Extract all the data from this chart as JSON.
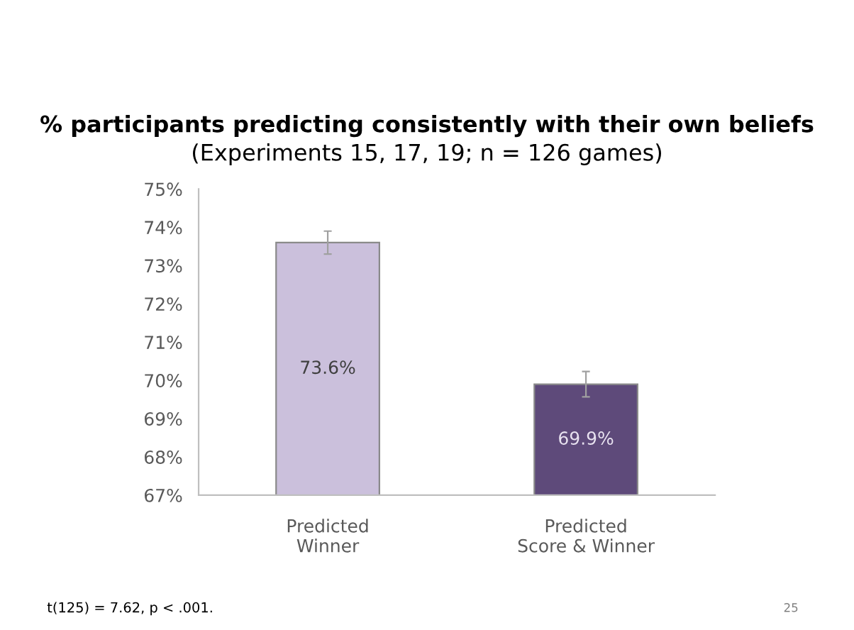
{
  "chart_data": {
    "type": "bar",
    "title": "% participants predicting consistently with their own beliefs",
    "subtitle": "(Experiments 15, 17, 19; n = 126 games)",
    "categories": [
      "Predicted\nWinner",
      "Predicted\nScore & Winner"
    ],
    "values": [
      73.6,
      69.9
    ],
    "colors": [
      "#cbc0dc",
      "#5e4a7a"
    ],
    "errors": [
      0.3,
      0.33
    ],
    "value_labels": [
      "73.6%",
      "69.9%"
    ],
    "ylim": [
      67,
      75
    ],
    "yticks": [
      {
        "value": 67,
        "label": "67%"
      },
      {
        "value": 68,
        "label": "68%"
      },
      {
        "value": 69,
        "label": "69%"
      },
      {
        "value": 70,
        "label": "70%"
      },
      {
        "value": 71,
        "label": "71%"
      },
      {
        "value": 72,
        "label": "72%"
      },
      {
        "value": 73,
        "label": "73%"
      },
      {
        "value": 74,
        "label": "74%"
      },
      {
        "value": 75,
        "label": "75%"
      }
    ],
    "grid": false,
    "legend": false,
    "annotations": [
      "t(125) = 7.62, p < .001.",
      "25"
    ]
  }
}
